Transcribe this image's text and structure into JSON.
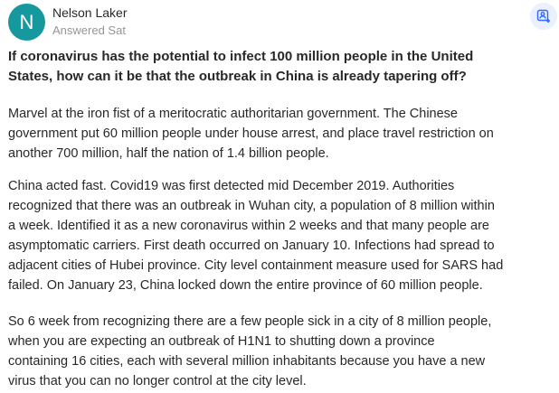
{
  "author": {
    "initial": "N",
    "name": "Nelson Laker",
    "meta": "Answered Sat",
    "avatar_color": "#16999e"
  },
  "follow_button": {
    "icon": "add-person-icon",
    "color": "#2e69ff"
  },
  "question": {
    "lines": [
      "If coronavirus has the potential to infect 100 million people in the United",
      "States, how can it be that the outbreak in China is already tapering off?"
    ]
  },
  "paragraphs": [
    {
      "lines": [
        "Marvel at the iron fist of a meritocratic authoritarian government. The Chinese",
        "government put 60 million people under house arrest, and place travel restriction on",
        "another 700 million, half the nation of 1.4 billion people."
      ]
    },
    {
      "lines": [
        "China acted fast. Covid19 was first detected mid December 2019. Authorities",
        "recognized that there was an outbreak in Wuhan city, a population of 8 million within",
        "a week. Identified it as a new coronavirus within 2 weeks and that many people are",
        "asymptomatic carriers. First death occurred on January 10. Infections had spread to",
        "adjacent cities of Hubei province. City level containment measure used for SARS had",
        "failed. On January 23, China locked down the entire province of 60 million people."
      ]
    },
    {
      "lines": [
        "So 6 week from recognizing there are a few people sick in a city of 8 million people,",
        "when you are expecting an outbreak of H1N1 to shutting down a province",
        "containing 16 cities, each with several million inhabitants because you have a new",
        "virus that you can no longer control at the city level."
      ]
    }
  ]
}
